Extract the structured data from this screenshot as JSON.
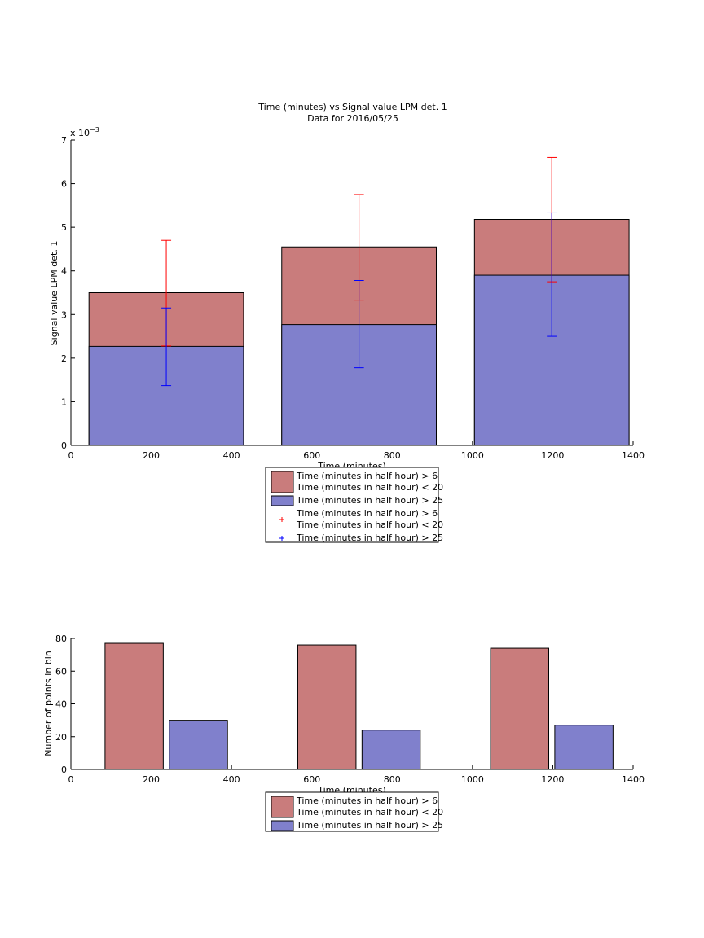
{
  "colors": {
    "series1": "#c97c7c",
    "series2": "#8080cc",
    "err1": "#ff0000",
    "err2": "#0000ff"
  },
  "chart_data": [
    {
      "type": "bar",
      "title": "Time (minutes) vs Signal value LPM det. 1",
      "subtitle": "Data for 2016/05/25",
      "xlabel": "Time (minutes)",
      "ylabel": "Signal value LPM det. 1",
      "y_exponent": "x 10",
      "y_exponent_power": "−3",
      "xlim": [
        0,
        1400
      ],
      "ylim": [
        0,
        7
      ],
      "xticks": [
        "0",
        "200",
        "400",
        "600",
        "800",
        "1000",
        "1200",
        "1400"
      ],
      "yticks": [
        "0",
        "1",
        "2",
        "3",
        "4",
        "5",
        "6",
        "7"
      ],
      "bins": [
        {
          "x0": 45,
          "x1": 430
        },
        {
          "x0": 525,
          "x1": 910
        },
        {
          "x0": 1005,
          "x1": 1390
        }
      ],
      "series": [
        {
          "name": "Time (minutes in half hour) > 6\nTime (minutes in half hour) < 20",
          "values": [
            3.5,
            4.55,
            5.18
          ],
          "error_low": [
            2.28,
            3.33,
            3.75
          ],
          "error_high": [
            4.7,
            5.75,
            6.6
          ]
        },
        {
          "name": "Time (minutes in half hour) > 25",
          "values": [
            2.27,
            2.77,
            3.9
          ],
          "error_low": [
            1.37,
            1.78,
            2.5
          ],
          "error_high": [
            3.15,
            3.78,
            5.33
          ]
        }
      ],
      "legend": [
        {
          "kind": "patch",
          "series": 0,
          "lines": [
            "Time (minutes in half hour) > 6",
            "Time (minutes in half hour) < 20"
          ]
        },
        {
          "kind": "patch",
          "series": 1,
          "lines": [
            "Time (minutes in half hour) > 25"
          ]
        },
        {
          "kind": "marker",
          "series": 0,
          "lines": [
            "Time (minutes in half hour) > 6",
            "Time (minutes in half hour) < 20"
          ]
        },
        {
          "kind": "marker",
          "series": 1,
          "lines": [
            "Time (minutes in half hour) > 25"
          ]
        }
      ]
    },
    {
      "type": "bar",
      "xlabel": "Time (minutes)",
      "ylabel": "Number of points in bin",
      "xlim": [
        0,
        1400
      ],
      "ylim": [
        0,
        80
      ],
      "xticks": [
        "0",
        "200",
        "400",
        "600",
        "800",
        "1000",
        "1200",
        "1400"
      ],
      "yticks": [
        "0",
        "20",
        "40",
        "60",
        "80"
      ],
      "bars": [
        {
          "x0": 85,
          "x1": 230,
          "value": 77,
          "series": 0
        },
        {
          "x0": 245,
          "x1": 390,
          "value": 30,
          "series": 1
        },
        {
          "x0": 565,
          "x1": 710,
          "value": 76,
          "series": 0
        },
        {
          "x0": 725,
          "x1": 870,
          "value": 24,
          "series": 1
        },
        {
          "x0": 1045,
          "x1": 1190,
          "value": 74,
          "series": 0
        },
        {
          "x0": 1205,
          "x1": 1350,
          "value": 27,
          "series": 1
        }
      ],
      "legend": [
        {
          "kind": "patch",
          "series": 0,
          "lines": [
            "Time (minutes in half hour) > 6",
            "Time (minutes in half hour) < 20"
          ]
        },
        {
          "kind": "patch",
          "series": 1,
          "lines": [
            "Time (minutes in half hour) > 25"
          ]
        }
      ]
    }
  ]
}
